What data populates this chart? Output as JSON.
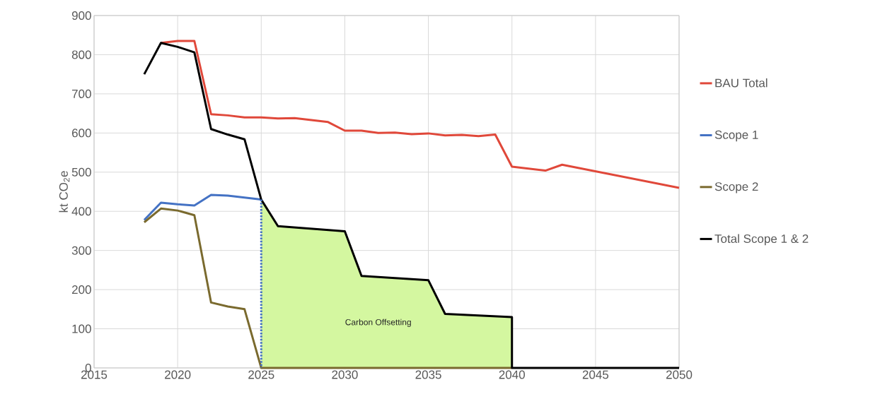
{
  "chart_data": {
    "type": "line",
    "ylabel": "kt CO$_{2}$e",
    "xlim": [
      2015,
      2050
    ],
    "ylim": [
      0,
      900
    ],
    "xticks": [
      2015,
      2020,
      2025,
      2030,
      2035,
      2040,
      2045,
      2050
    ],
    "yticks": [
      0,
      100,
      200,
      300,
      400,
      500,
      600,
      700,
      800,
      900
    ],
    "grid": true,
    "legend": "right",
    "marker": "none",
    "annotations": [
      "Carbon Offsetting"
    ],
    "series": [
      {
        "type": "area",
        "color": "#d4f7a0",
        "x": [
          2025,
          2026,
          2030,
          2031,
          2035,
          2036,
          2040
        ],
        "values": [
          430,
          362,
          349,
          235,
          224,
          138,
          130
        ]
      },
      {
        "name": "BAU Total",
        "color": "#e0483a",
        "x": [
          2019,
          2020,
          2021,
          2022,
          2023,
          2024,
          2025,
          2026,
          2027,
          2028,
          2029,
          2030,
          2031,
          2032,
          2033,
          2034,
          2035,
          2036,
          2037,
          2038,
          2039,
          2040,
          2042,
          2043,
          2050
        ],
        "values": [
          830,
          835,
          835,
          648,
          645,
          640,
          640,
          637,
          638,
          633,
          628,
          606,
          606,
          600,
          601,
          597,
          599,
          594,
          595,
          592,
          596,
          514,
          504,
          519,
          460
        ]
      },
      {
        "name": "Scope 1",
        "color": "#4472c4",
        "x": [
          2018,
          2019,
          2020,
          2021,
          2022,
          2023,
          2024,
          2025
        ],
        "values": [
          378,
          422,
          418,
          415,
          442,
          440,
          435,
          430
        ]
      },
      {
        "name": "Scope 2",
        "color": "#7a6a2e",
        "x": [
          2018,
          2019,
          2020,
          2021,
          2022,
          2023,
          2024,
          2025,
          2040
        ],
        "values": [
          372,
          407,
          402,
          390,
          167,
          157,
          150,
          0,
          0
        ]
      },
      {
        "name": "Total Scope 1 & 2",
        "color": "#000000",
        "x": [
          2018,
          2019,
          2020,
          2021,
          2022,
          2023,
          2024,
          2025,
          2026,
          2030,
          2031,
          2035,
          2036,
          2040,
          2040,
          2050
        ],
        "values": [
          750,
          830,
          820,
          806,
          610,
          596,
          584,
          430,
          362,
          349,
          235,
          224,
          138,
          130,
          0,
          0
        ]
      },
      {
        "color": "#4472c4",
        "line_style": "dotted",
        "x": [
          2025,
          2025
        ],
        "values": [
          430,
          0
        ]
      }
    ]
  }
}
